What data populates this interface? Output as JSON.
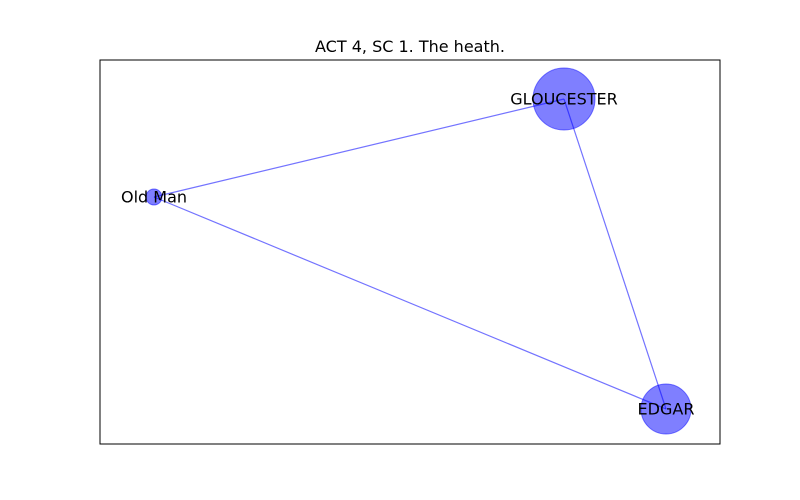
{
  "title": "ACT 4, SC 1. The heath.",
  "style": {
    "node_color": "#0000ff",
    "edge_color": "#0000ff",
    "frame_color": "#000000",
    "background": "#ffffff"
  },
  "nodes": [
    {
      "id": "gloucester",
      "label": "GLOUCESTER",
      "weight": 4
    },
    {
      "id": "old-man",
      "label": "Old Man",
      "weight": 1
    },
    {
      "id": "edgar",
      "label": "EDGAR",
      "weight": 3
    }
  ],
  "edges": [
    {
      "from": "gloucester",
      "to": "old-man"
    },
    {
      "from": "gloucester",
      "to": "edgar"
    },
    {
      "from": "old-man",
      "to": "edgar"
    }
  ]
}
